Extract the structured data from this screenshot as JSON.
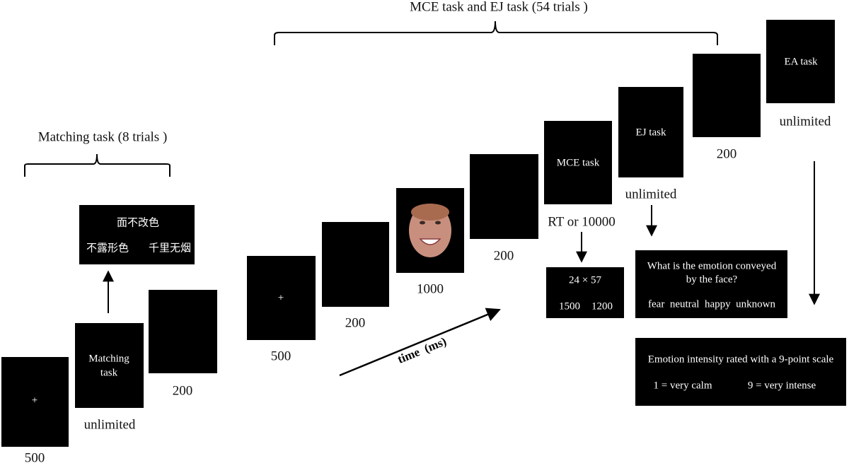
{
  "braces": [
    {
      "label": "Matching task (8 trials )"
    },
    {
      "label": "MCE task and EJ task (54 trials )"
    }
  ],
  "matching": {
    "fixation": {
      "symbol": "+",
      "duration": "500"
    },
    "task": {
      "lines": [
        "Matching",
        "task"
      ],
      "duration": "unlimited"
    },
    "blank": {
      "duration": "200"
    },
    "prompt": {
      "target": "面不改色",
      "options": [
        "不露形色",
        "千里无烟"
      ]
    }
  },
  "main": {
    "fixation": {
      "symbol": "+",
      "duration": "500"
    },
    "blank1": {
      "duration": "200"
    },
    "face": {
      "duration": "1000"
    },
    "blank2": {
      "duration": "200"
    },
    "mce": {
      "label": "MCE task",
      "duration": "RT or 10000"
    },
    "math": {
      "problem": "24 × 57",
      "options": [
        "1500",
        "1200"
      ]
    },
    "ej": {
      "label": "EJ task",
      "duration": "unlimited"
    },
    "question": {
      "lines": [
        "What is the emotion conveyed",
        "by the face?"
      ],
      "options": "fear  neutral  happy  unknown"
    },
    "blank3": {
      "duration": "200"
    },
    "ea": {
      "label": "EA task",
      "duration": "unlimited"
    },
    "rating": {
      "text": "Emotion intensity rated with a 9-point scale",
      "options": [
        "1 = very calm",
        "9 = very intense"
      ]
    }
  },
  "time_label": "time  (ms)"
}
